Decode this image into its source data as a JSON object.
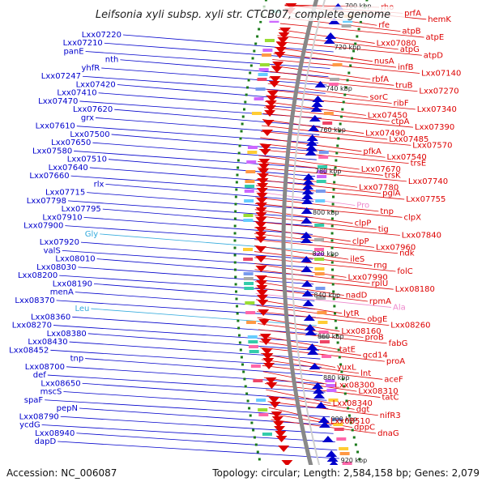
{
  "title": "Leifsonia xyli subsp. xyli str. CTCB07, complete genome",
  "accession": "Accession: NC_006087",
  "topology": "Topology: circular; Length: 2,584,158 bp; Genes: 2,079",
  "colors": {
    "forward": "#0000cc",
    "reverse": "#dd0000",
    "trna": "#33aadd",
    "rrna": "#ee88cc",
    "backbone": "#888888",
    "ticks": "#1a7a1a"
  },
  "kbp_labels": [
    "700 kbp",
    "720 kbp",
    "740 kbp",
    "760 kbp",
    "780 kbp",
    "800 kbp",
    "820 kbp",
    "840 kbp",
    "860 kbp",
    "880 kbp",
    "900 kbp",
    "920 kbp"
  ],
  "left_labels": [
    {
      "text": "Lxx07220",
      "type": "forward"
    },
    {
      "text": "Lxx07210",
      "type": "forward"
    },
    {
      "text": "panE",
      "type": "forward"
    },
    {
      "text": "nth",
      "type": "forward"
    },
    {
      "text": "yhfR",
      "type": "forward"
    },
    {
      "text": "Lxx07247",
      "type": "forward"
    },
    {
      "text": "Lxx07420",
      "type": "forward"
    },
    {
      "text": "Lxx07410",
      "type": "forward"
    },
    {
      "text": "Lxx07470",
      "type": "forward"
    },
    {
      "text": "Lxx07620",
      "type": "forward"
    },
    {
      "text": "grx",
      "type": "forward"
    },
    {
      "text": "Lxx07610",
      "type": "forward"
    },
    {
      "text": "Lxx07500",
      "type": "forward"
    },
    {
      "text": "Lxx07650",
      "type": "forward"
    },
    {
      "text": "Lxx07580",
      "type": "forward"
    },
    {
      "text": "Lxx07510",
      "type": "forward"
    },
    {
      "text": "Lxx07640",
      "type": "forward"
    },
    {
      "text": "Lxx07660",
      "type": "forward"
    },
    {
      "text": "rlx",
      "type": "forward"
    },
    {
      "text": "Lxx07715",
      "type": "forward"
    },
    {
      "text": "Lxx07798",
      "type": "forward"
    },
    {
      "text": "Lxx07795",
      "type": "forward"
    },
    {
      "text": "Lxx07910",
      "type": "forward"
    },
    {
      "text": "Lxx07900",
      "type": "forward"
    },
    {
      "text": "Gly",
      "type": "trna"
    },
    {
      "text": "Lxx07920",
      "type": "forward"
    },
    {
      "text": "valS",
      "type": "forward"
    },
    {
      "text": "Lxx08010",
      "type": "forward"
    },
    {
      "text": "Lxx08030",
      "type": "forward"
    },
    {
      "text": "Lxx08200",
      "type": "forward"
    },
    {
      "text": "Lxx08190",
      "type": "forward"
    },
    {
      "text": "menA",
      "type": "forward"
    },
    {
      "text": "Lxx08370",
      "type": "forward"
    },
    {
      "text": "Leu",
      "type": "trna"
    },
    {
      "text": "Lxx08360",
      "type": "forward"
    },
    {
      "text": "Lxx08270",
      "type": "forward"
    },
    {
      "text": "Lxx08380",
      "type": "forward"
    },
    {
      "text": "Lxx08430",
      "type": "forward"
    },
    {
      "text": "Lxx08452",
      "type": "forward"
    },
    {
      "text": "tnp",
      "type": "forward"
    },
    {
      "text": "Lxx08700",
      "type": "forward"
    },
    {
      "text": "def",
      "type": "forward"
    },
    {
      "text": "Lxx08650",
      "type": "forward"
    },
    {
      "text": "mscS",
      "type": "forward"
    },
    {
      "text": "spaF",
      "type": "forward"
    },
    {
      "text": "pepN",
      "type": "forward"
    },
    {
      "text": "Lxx08790",
      "type": "forward"
    },
    {
      "text": "ycdG",
      "type": "forward"
    },
    {
      "text": "Lxx08940",
      "type": "forward"
    },
    {
      "text": "dapD",
      "type": "forward"
    }
  ],
  "right_labels": [
    {
      "text": "rho",
      "type": "reverse"
    },
    {
      "text": "prfA",
      "type": "reverse"
    },
    {
      "text": "hemK",
      "type": "reverse"
    },
    {
      "text": "rfe",
      "type": "reverse"
    },
    {
      "text": "atpB",
      "type": "reverse"
    },
    {
      "text": "atpE",
      "type": "reverse"
    },
    {
      "text": "Lxx07080",
      "type": "reverse"
    },
    {
      "text": "atpG",
      "type": "reverse"
    },
    {
      "text": "atpD",
      "type": "reverse"
    },
    {
      "text": "nusA",
      "type": "reverse"
    },
    {
      "text": "infB",
      "type": "reverse"
    },
    {
      "text": "Lxx07140",
      "type": "reverse"
    },
    {
      "text": "rbfA",
      "type": "reverse"
    },
    {
      "text": "truB",
      "type": "reverse"
    },
    {
      "text": "Lxx07270",
      "type": "reverse"
    },
    {
      "text": "sorC",
      "type": "reverse"
    },
    {
      "text": "ribF",
      "type": "reverse"
    },
    {
      "text": "Lxx07340",
      "type": "reverse"
    },
    {
      "text": "Lxx07450",
      "type": "reverse"
    },
    {
      "text": "ctpA",
      "type": "reverse"
    },
    {
      "text": "Lxx07390",
      "type": "reverse"
    },
    {
      "text": "Lxx07490",
      "type": "reverse"
    },
    {
      "text": "Lxx07485",
      "type": "reverse"
    },
    {
      "text": "Lxx07570",
      "type": "reverse"
    },
    {
      "text": "pfkA",
      "type": "reverse"
    },
    {
      "text": "Lxx07540",
      "type": "reverse"
    },
    {
      "text": "trsE",
      "type": "reverse"
    },
    {
      "text": "Lxx07670",
      "type": "reverse"
    },
    {
      "text": "trsK",
      "type": "reverse"
    },
    {
      "text": "Lxx07740",
      "type": "reverse"
    },
    {
      "text": "Lxx07780",
      "type": "reverse"
    },
    {
      "text": "pglA",
      "type": "reverse"
    },
    {
      "text": "Lxx07755",
      "type": "reverse"
    },
    {
      "text": "Pro",
      "type": "rrna"
    },
    {
      "text": "tnp",
      "type": "reverse"
    },
    {
      "text": "clpX",
      "type": "reverse"
    },
    {
      "text": "clpP",
      "type": "reverse"
    },
    {
      "text": "tig",
      "type": "reverse"
    },
    {
      "text": "Lxx07840",
      "type": "reverse"
    },
    {
      "text": "clpP",
      "type": "reverse"
    },
    {
      "text": "Lxx07960",
      "type": "reverse"
    },
    {
      "text": "ndk",
      "type": "reverse"
    },
    {
      "text": "ileS",
      "type": "reverse"
    },
    {
      "text": "rng",
      "type": "reverse"
    },
    {
      "text": "folC",
      "type": "reverse"
    },
    {
      "text": "Lxx07990",
      "type": "reverse"
    },
    {
      "text": "rplU",
      "type": "reverse"
    },
    {
      "text": "Lxx08180",
      "type": "reverse"
    },
    {
      "text": "nadD",
      "type": "reverse"
    },
    {
      "text": "rpmA",
      "type": "reverse"
    },
    {
      "text": "Ala",
      "type": "rrna"
    },
    {
      "text": "lytR",
      "type": "reverse"
    },
    {
      "text": "obgE",
      "type": "reverse"
    },
    {
      "text": "Lxx08260",
      "type": "reverse"
    },
    {
      "text": "Lxx08160",
      "type": "reverse"
    },
    {
      "text": "proB",
      "type": "reverse"
    },
    {
      "text": "fabG",
      "type": "reverse"
    },
    {
      "text": "tatE",
      "type": "reverse"
    },
    {
      "text": "gcd14",
      "type": "reverse"
    },
    {
      "text": "proA",
      "type": "reverse"
    },
    {
      "text": "yuxL",
      "type": "reverse"
    },
    {
      "text": "lnt",
      "type": "reverse"
    },
    {
      "text": "aceF",
      "type": "reverse"
    },
    {
      "text": "Lxx08300",
      "type": "reverse"
    },
    {
      "text": "Lxx08310",
      "type": "reverse"
    },
    {
      "text": "tatC",
      "type": "reverse"
    },
    {
      "text": "Lxx08340",
      "type": "reverse"
    },
    {
      "text": "dgt",
      "type": "reverse"
    },
    {
      "text": "nifR3",
      "type": "reverse"
    },
    {
      "text": "Lxx08510",
      "type": "reverse"
    },
    {
      "text": "dppC",
      "type": "reverse"
    },
    {
      "text": "dnaG",
      "type": "reverse"
    }
  ]
}
